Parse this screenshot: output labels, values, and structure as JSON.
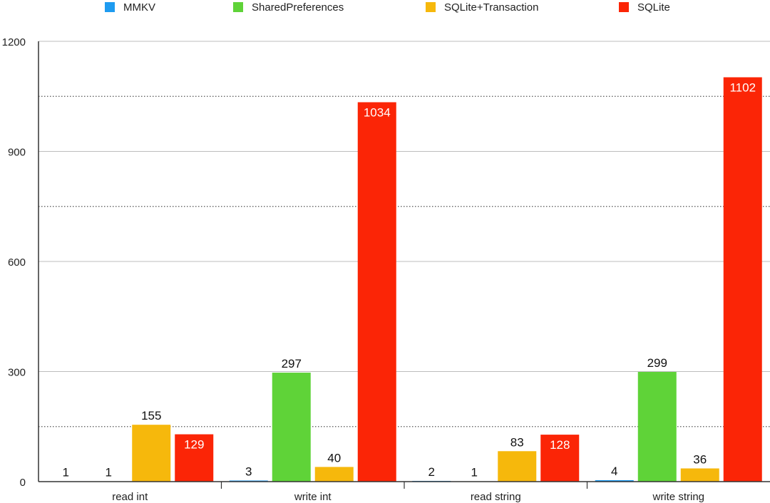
{
  "chart_data": {
    "type": "bar",
    "categories": [
      "read int",
      "write int",
      "read string",
      "write string"
    ],
    "series": [
      {
        "name": "MMKV",
        "color": "#1e9bf0",
        "values": [
          1,
          3,
          2,
          4
        ]
      },
      {
        "name": "SharedPreferences",
        "color": "#5fd338",
        "values": [
          1,
          297,
          1,
          299
        ]
      },
      {
        "name": "SQLite+Transaction",
        "color": "#f6b80c",
        "values": [
          155,
          40,
          83,
          36
        ]
      },
      {
        "name": "SQLite",
        "color": "#fb2506",
        "values": [
          129,
          1034,
          128,
          1102
        ]
      }
    ],
    "ylim": [
      0,
      1200
    ],
    "yticks": [
      "0",
      "300",
      "600",
      "900",
      "1200"
    ],
    "minor_grid": [
      150,
      750,
      1050
    ],
    "major_grid": [
      300,
      600,
      900,
      1200
    ],
    "legend_position": "top",
    "grid": true,
    "title": "",
    "xlabel": "",
    "ylabel": ""
  }
}
